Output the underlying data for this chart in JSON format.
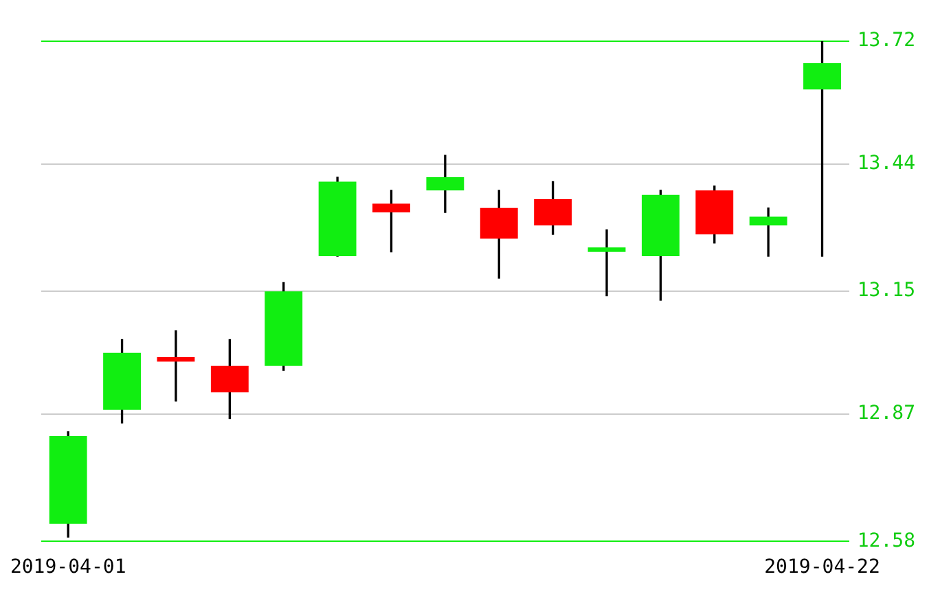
{
  "chart_data": {
    "type": "candlestick",
    "categories": [
      "2019-04-01",
      null,
      null,
      null,
      null,
      null,
      null,
      null,
      null,
      null,
      null,
      null,
      null,
      null,
      "2019-04-22"
    ],
    "ohlc": [
      [
        12.62,
        12.83,
        12.59,
        12.82
      ],
      [
        12.88,
        13.04,
        12.85,
        13.01
      ],
      [
        13.0,
        13.06,
        12.9,
        12.99
      ],
      [
        12.98,
        13.04,
        12.86,
        12.92
      ],
      [
        12.98,
        13.17,
        12.97,
        13.15
      ],
      [
        13.23,
        13.41,
        13.23,
        13.4
      ],
      [
        13.35,
        13.38,
        13.24,
        13.33
      ],
      [
        13.38,
        13.46,
        13.33,
        13.41
      ],
      [
        13.34,
        13.38,
        13.18,
        13.27
      ],
      [
        13.36,
        13.4,
        13.28,
        13.3
      ],
      [
        13.24,
        13.29,
        13.14,
        13.25
      ],
      [
        13.23,
        13.38,
        13.13,
        13.37
      ],
      [
        13.38,
        13.39,
        13.26,
        13.28
      ],
      [
        13.3,
        13.34,
        13.23,
        13.32
      ],
      [
        13.61,
        13.72,
        13.23,
        13.67
      ]
    ],
    "colors": [
      "#11ee11",
      "#11ee11",
      "#ff0000",
      "#ff0000",
      "#11ee11",
      "#11ee11",
      "#ff0000",
      "#11ee11",
      "#ff0000",
      "#ff0000",
      "#11ee11",
      "#11ee11",
      "#ff0000",
      "#11ee11",
      "#11ee11"
    ],
    "ylim": [
      12.58,
      13.72
    ],
    "yticks": [
      12.58,
      12.87,
      13.15,
      13.44,
      13.72
    ],
    "grid": "y"
  }
}
